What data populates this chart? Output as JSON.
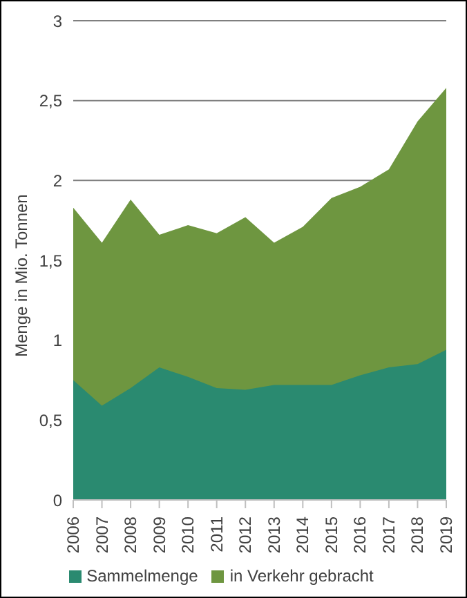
{
  "chart_data": {
    "type": "area",
    "ylabel": "Menge in Mio. Tonnen",
    "categories": [
      "2006",
      "2007",
      "2008",
      "2009",
      "2010",
      "2011",
      "2012",
      "2013",
      "2014",
      "2015",
      "2016",
      "2017",
      "2018",
      "2019"
    ],
    "series": [
      {
        "name": "in Verkehr gebracht",
        "color": "#6e9640",
        "values": [
          1.83,
          1.61,
          1.88,
          1.66,
          1.72,
          1.67,
          1.77,
          1.61,
          1.71,
          1.89,
          1.96,
          2.07,
          2.37,
          2.58
        ]
      },
      {
        "name": "Sammelmenge",
        "color": "#2a8a70",
        "values": [
          0.75,
          0.59,
          0.7,
          0.83,
          0.77,
          0.7,
          0.69,
          0.72,
          0.72,
          0.72,
          0.78,
          0.83,
          0.85,
          0.94
        ]
      }
    ],
    "ylim": [
      0,
      3
    ],
    "yticks": [
      0,
      {
        "value": 0.5,
        "label": "0,5"
      },
      1,
      {
        "value": 1.5,
        "label": "1,5"
      },
      2,
      {
        "value": 2.5,
        "label": "2,5"
      },
      3
    ],
    "grid": "y",
    "legend": "bottom"
  }
}
